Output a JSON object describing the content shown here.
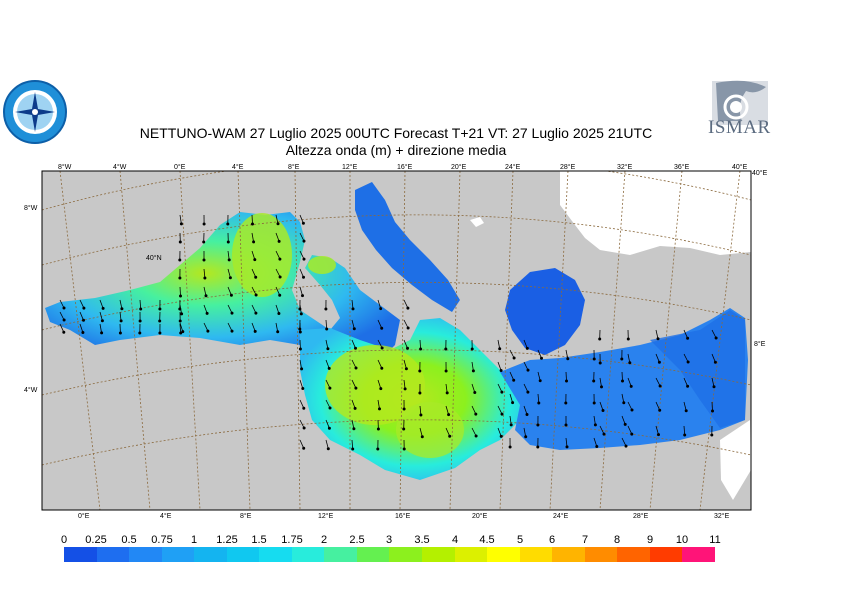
{
  "header": {
    "title_line1": "NETTUNO-WAM  27  Luglio   2025 00UTC Forecast T+21 VT: 27  Luglio   2025 21UTC",
    "title_line2": "Altezza onda (m) + direzione media"
  },
  "logos": {
    "left_icon": "compass-rose-seal-icon",
    "right_text": "ISMAR"
  },
  "map": {
    "top_longitude_ticks": [
      "8°W",
      "4°W",
      "0°E",
      "4°E",
      "8°E",
      "12°E",
      "16°E",
      "20°E",
      "24°E",
      "28°E",
      "32°E",
      "36°E",
      "40°E"
    ],
    "bottom_longitude_ticks": [
      "0°E",
      "4°E",
      "8°E",
      "12°E",
      "16°E",
      "20°E",
      "24°E",
      "28°E",
      "32°E"
    ],
    "latitude_labels": [
      "8°W",
      "40°N",
      "4°W"
    ],
    "right_labels": [
      "40°E",
      "8°E"
    ],
    "colors": {
      "land": "#c8c8c8",
      "sea_low": "#1e6fe6",
      "sea_mid": "#2fb9f0",
      "sea_high": "#b4e81e",
      "graticule": "#8b6a3e"
    }
  },
  "legend": {
    "labels": [
      "0",
      "0.25",
      "0.5",
      "0.75",
      "1",
      "1.25",
      "1.5",
      "1.75",
      "2",
      "2.5",
      "3",
      "3.5",
      "4",
      "4.5",
      "5",
      "6",
      "7",
      "8",
      "9",
      "10",
      "11"
    ],
    "colors": [
      "#1450e6",
      "#1e6ef0",
      "#2288f5",
      "#1fa0f5",
      "#14b4f0",
      "#10c8f0",
      "#16dcf0",
      "#28ecdc",
      "#46f0a0",
      "#64f050",
      "#8cf01e",
      "#b4f000",
      "#dcf000",
      "#ffff00",
      "#ffdc00",
      "#ffb400",
      "#ff8c00",
      "#ff6400",
      "#ff3c00",
      "#ff1478",
      "#ff00c8"
    ]
  }
}
